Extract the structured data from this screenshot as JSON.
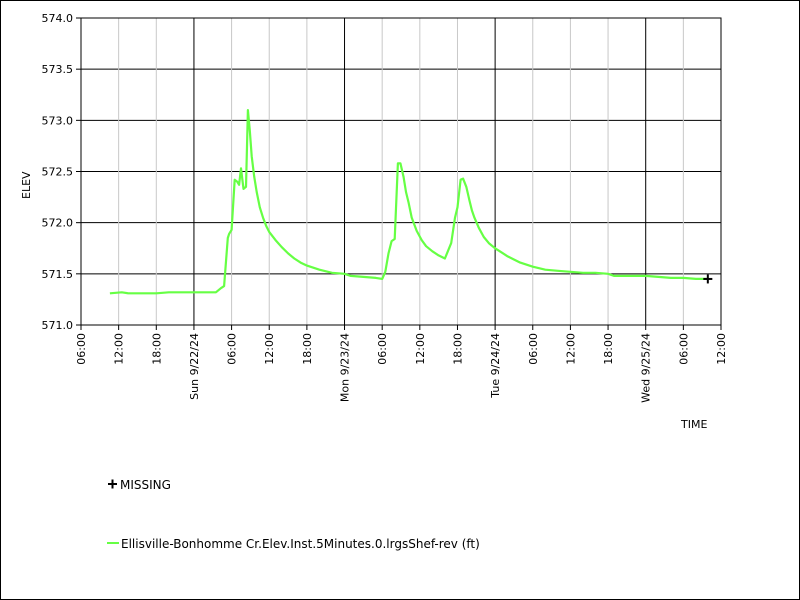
{
  "chart_data": {
    "type": "line",
    "ylabel": "ELEV",
    "xlabel": "TIME",
    "ylim": [
      571.0,
      574.0
    ],
    "yticks": [
      571.0,
      571.5,
      572.0,
      572.5,
      573.0,
      573.5,
      574.0
    ],
    "ytick_labels": [
      "571.0",
      "571.5",
      "572.0",
      "572.5",
      "573.0",
      "573.5",
      "574.0"
    ],
    "xlim_hours": [
      0,
      102
    ],
    "x_ticks": [
      {
        "hour": 0,
        "label": "06:00",
        "major": false
      },
      {
        "hour": 6,
        "label": "12:00",
        "major": false
      },
      {
        "hour": 12,
        "label": "18:00",
        "major": false
      },
      {
        "hour": 18,
        "label": "Sun 9/22/24",
        "major": true
      },
      {
        "hour": 24,
        "label": "06:00",
        "major": false
      },
      {
        "hour": 30,
        "label": "12:00",
        "major": false
      },
      {
        "hour": 36,
        "label": "18:00",
        "major": false
      },
      {
        "hour": 42,
        "label": "Mon 9/23/24",
        "major": true
      },
      {
        "hour": 48,
        "label": "06:00",
        "major": false
      },
      {
        "hour": 54,
        "label": "12:00",
        "major": false
      },
      {
        "hour": 60,
        "label": "18:00",
        "major": false
      },
      {
        "hour": 66,
        "label": "Tue 9/24/24",
        "major": true
      },
      {
        "hour": 72,
        "label": "06:00",
        "major": false
      },
      {
        "hour": 78,
        "label": "12:00",
        "major": false
      },
      {
        "hour": 84,
        "label": "18:00",
        "major": false
      },
      {
        "hour": 90,
        "label": "Wed 9/25/24",
        "major": true
      },
      {
        "hour": 96,
        "label": "06:00",
        "major": false
      },
      {
        "hour": 102,
        "label": "12:00",
        "major": false
      }
    ],
    "grid": true,
    "series": [
      {
        "name": "Ellisville-Bonhomme Cr.Elev.Inst.5Minutes.0.lrgsShef-rev (ft)",
        "color": "#66ff44",
        "x": [
          4.6,
          6.5,
          7.5,
          12.0,
          14.0,
          19.0,
          21.5,
          22.3,
          22.8,
          23.4,
          23.6,
          24.0,
          24.5,
          24.9,
          25.2,
          25.5,
          25.9,
          26.3,
          26.6,
          26.9,
          27.2,
          27.6,
          28.0,
          28.5,
          29.0,
          29.5,
          30.0,
          31.0,
          32.0,
          33.0,
          34.0,
          35.0,
          36.0,
          38.0,
          40.0,
          42.0,
          43.0,
          45.0,
          47.0,
          48.0,
          48.5,
          49.0,
          49.5,
          50.0,
          50.5,
          50.9,
          51.4,
          51.8,
          52.2,
          52.7,
          53.5,
          54.3,
          55.0,
          56.0,
          57.0,
          58.0,
          59.0,
          59.6,
          60.0,
          60.5,
          60.9,
          61.4,
          61.9,
          62.3,
          62.7,
          63.4,
          64.2,
          65.0,
          66.0,
          67.0,
          68.0,
          69.0,
          70.0,
          72.0,
          74.0,
          76.0,
          78.0,
          80.0,
          82.0,
          84.0,
          85.0,
          86.0,
          88.0,
          90.0,
          92.0,
          94.0,
          96.0,
          98.0,
          100.0
        ],
        "y": [
          571.31,
          571.32,
          571.31,
          571.31,
          571.32,
          571.32,
          571.32,
          571.36,
          571.38,
          571.85,
          571.89,
          571.93,
          572.42,
          572.4,
          572.37,
          572.53,
          572.33,
          572.35,
          573.1,
          572.9,
          572.65,
          572.45,
          572.3,
          572.15,
          572.05,
          571.97,
          571.91,
          571.83,
          571.76,
          571.7,
          571.65,
          571.61,
          571.58,
          571.54,
          571.51,
          571.5,
          571.48,
          571.47,
          571.46,
          571.45,
          571.52,
          571.7,
          571.82,
          571.84,
          572.58,
          572.58,
          572.45,
          572.3,
          572.2,
          572.05,
          571.92,
          571.83,
          571.77,
          571.72,
          571.68,
          571.65,
          571.8,
          572.05,
          572.15,
          572.42,
          572.43,
          572.35,
          572.22,
          572.12,
          572.05,
          571.95,
          571.86,
          571.8,
          571.75,
          571.71,
          571.67,
          571.64,
          571.61,
          571.57,
          571.54,
          571.53,
          571.52,
          571.51,
          571.51,
          571.5,
          571.48,
          571.48,
          571.48,
          571.48,
          571.47,
          571.46,
          571.46,
          571.45,
          571.45
        ]
      },
      {
        "name": "MISSING",
        "color": "#000000",
        "marker": "plus",
        "x": [
          99.9
        ],
        "y": [
          571.45
        ]
      }
    ]
  },
  "legend": {
    "missing_label": "MISSING",
    "series_label": "Ellisville-Bonhomme Cr.Elev.Inst.5Minutes.0.lrgsShef-rev (ft)"
  }
}
